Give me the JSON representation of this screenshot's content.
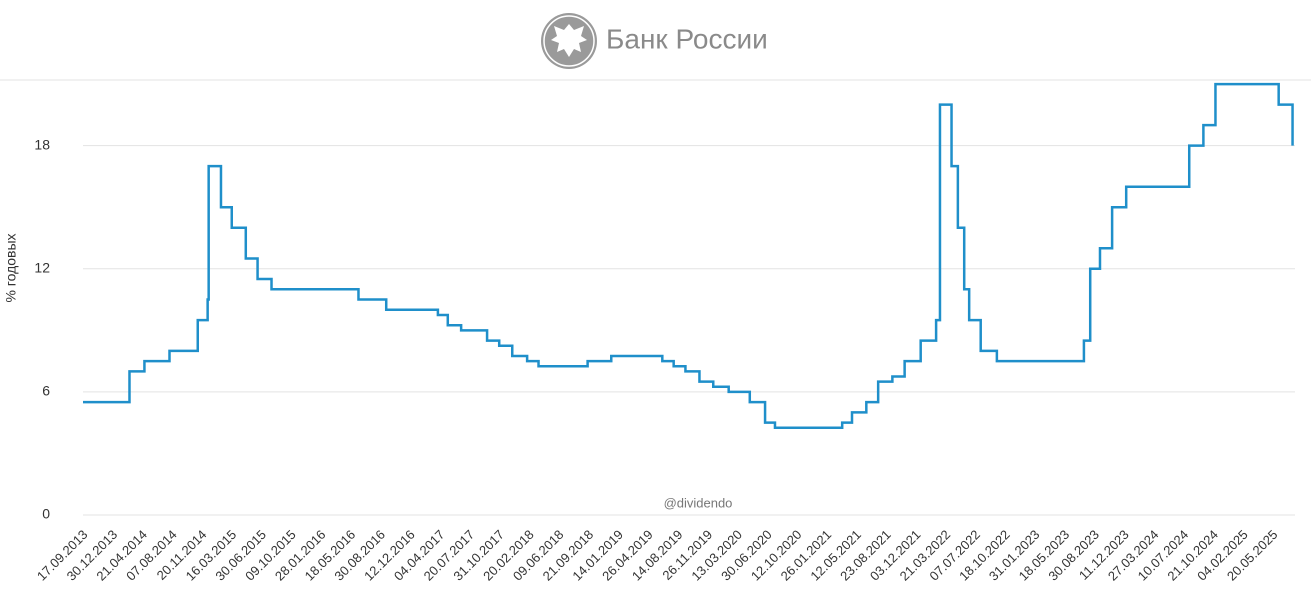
{
  "chart_data": {
    "type": "step",
    "title": "Банк России",
    "ylabel": "% годовых",
    "annotation": "@dividendo",
    "color": "#1f8fca",
    "grid": true,
    "ylim": [
      0,
      21.2
    ],
    "yticks": [
      0,
      6,
      12,
      18
    ],
    "xticks": [
      "17.09.2013",
      "30.12.2013",
      "21.04.2014",
      "07.08.2014",
      "20.11.2014",
      "16.03.2015",
      "30.06.2015",
      "09.10.2015",
      "28.01.2016",
      "18.05.2016",
      "30.08.2016",
      "12.12.2016",
      "04.04.2017",
      "20.07.2017",
      "31.10.2017",
      "20.02.2018",
      "09.06.2018",
      "21.09.2018",
      "14.01.2019",
      "26.04.2019",
      "14.08.2019",
      "26.11.2019",
      "13.03.2020",
      "30.06.2020",
      "12.10.2020",
      "26.01.2021",
      "12.05.2021",
      "23.08.2021",
      "03.12.2021",
      "21.03.2022",
      "07.07.2022",
      "18.10.2022",
      "31.01.2023",
      "18.05.2023",
      "30.08.2023",
      "11.12.2023",
      "27.03.2024",
      "10.07.2024",
      "21.10.2024",
      "04.02.2025",
      "20.05.2025"
    ],
    "x": [
      "17.09.2013",
      "03.03.2014",
      "28.04.2014",
      "28.07.2014",
      "05.11.2014",
      "12.12.2014",
      "16.12.2014",
      "02.02.2015",
      "16.03.2015",
      "05.05.2015",
      "16.06.2015",
      "03.08.2015",
      "14.06.2016",
      "19.09.2016",
      "27.03.2017",
      "02.05.2017",
      "19.06.2017",
      "18.09.2017",
      "30.10.2017",
      "18.12.2017",
      "12.02.2018",
      "26.03.2018",
      "17.09.2018",
      "17.12.2018",
      "17.06.2019",
      "29.07.2019",
      "09.09.2019",
      "28.10.2019",
      "16.12.2019",
      "10.02.2020",
      "27.04.2020",
      "22.06.2020",
      "27.07.2020",
      "22.03.2021",
      "26.04.2021",
      "15.06.2021",
      "26.07.2021",
      "13.09.2021",
      "25.10.2021",
      "20.12.2021",
      "14.02.2022",
      "28.02.2022",
      "11.04.2022",
      "04.05.2022",
      "27.05.2022",
      "14.06.2022",
      "25.07.2022",
      "19.09.2022",
      "24.07.2023",
      "15.08.2023",
      "18.09.2023",
      "30.10.2023",
      "18.12.2023",
      "29.07.2024",
      "16.09.2024",
      "28.10.2024",
      "09.06.2025",
      "28.07.2025"
    ],
    "values": [
      5.5,
      7,
      7.5,
      8,
      9.5,
      10.5,
      17,
      15,
      14,
      12.5,
      11.5,
      11,
      10.5,
      10,
      9.75,
      9.25,
      9,
      8.5,
      8.25,
      7.75,
      7.5,
      7.25,
      7.5,
      7.75,
      7.5,
      7.25,
      7,
      6.5,
      6.25,
      6,
      5.5,
      4.5,
      4.25,
      4.5,
      5,
      5.5,
      6.5,
      6.75,
      7.5,
      8.5,
      9.5,
      20,
      17,
      14,
      11,
      9.5,
      8,
      7.5,
      8.5,
      12,
      13,
      15,
      16,
      18,
      19,
      21,
      20,
      18
    ]
  }
}
